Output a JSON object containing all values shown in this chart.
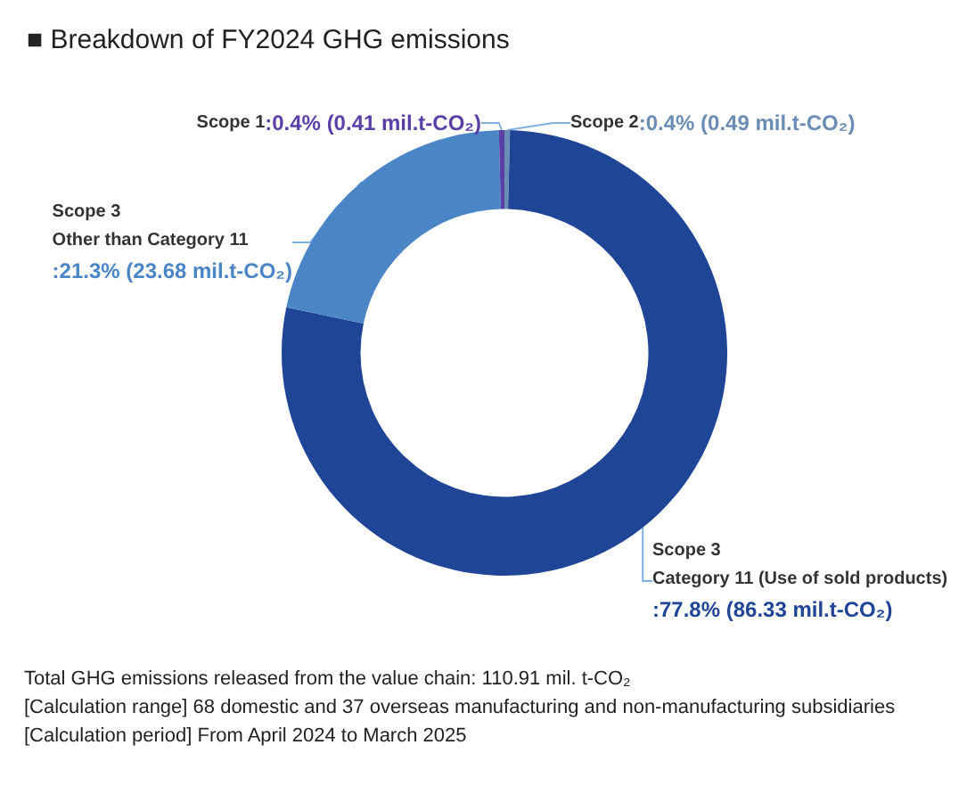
{
  "chart_data": {
    "type": "donut",
    "title": "■ Breakdown of FY2024 GHG emissions",
    "categories": [
      "Scope 2",
      "Scope 3\nCategory 11 (Use of sold products)",
      "Scope 3\nOther than Category 11",
      "Scope 1"
    ],
    "values": [
      0.4,
      77.8,
      21.3,
      0.4
    ],
    "value_labels": [
      ":0.4% (0.49 mil.t-CO₂)",
      ":77.8% (86.33 mil.t-CO₂)",
      ":21.3% (23.68 mil.t-CO₂)",
      ":0.4% (0.41 mil.t-CO₂)"
    ],
    "colors": [
      "#6a8db3",
      "#1f4596",
      "#4a86c6",
      "#5a3fa6"
    ],
    "legend": false,
    "annotations": [
      "Total GHG emissions released from the value chain: 110.91 mil. t-CO₂",
      "[Calculation range] 68 domestic and 37 overseas manufacturing and non-manufacturing subsidiaries",
      "[Calculation period] From April 2024 to March 2025"
    ]
  }
}
